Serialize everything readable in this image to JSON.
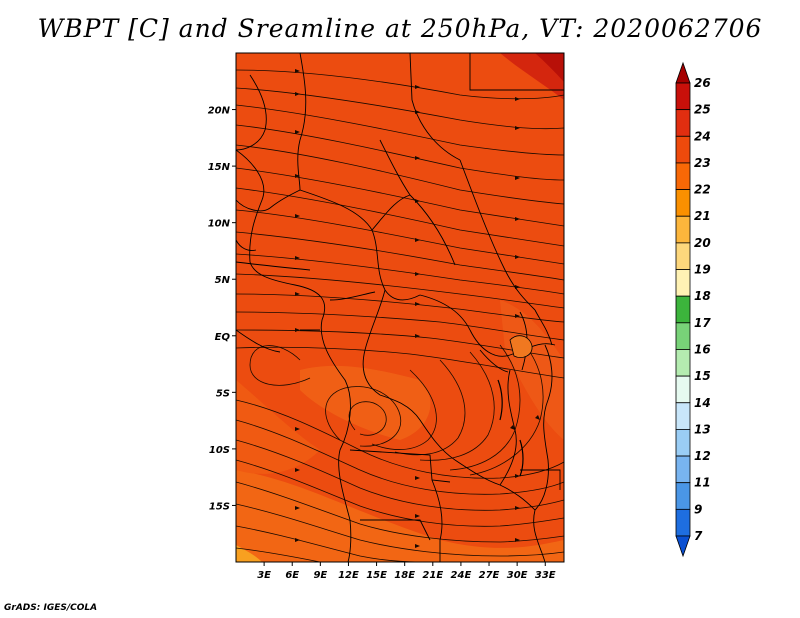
{
  "title": "WBPT [C] and Sreamline at 250hPa, VT: 2020062706",
  "footer": "GrADS: IGES/COLA",
  "map": {
    "lon_range": [
      0,
      35
    ],
    "lat_range": [
      -20,
      25
    ],
    "x_ticks": [
      "3E",
      "6E",
      "9E",
      "12E",
      "15E",
      "18E",
      "21E",
      "24E",
      "27E",
      "30E",
      "33E"
    ],
    "y_ticks": [
      "20N",
      "15N",
      "10N",
      "5N",
      "EQ",
      "5S",
      "10S",
      "15S"
    ],
    "field_dominant_range_c": [
      23,
      24
    ],
    "field_warm_core_max_c": 26,
    "field_min_c": 22
  },
  "colorbar": {
    "labels": [
      "26",
      "25",
      "24",
      "23",
      "22",
      "21",
      "20",
      "19",
      "18",
      "17",
      "16",
      "15",
      "14",
      "13",
      "12",
      "11",
      "9",
      "7"
    ],
    "colors": [
      "#a50000",
      "#c8100a",
      "#e12e10",
      "#ee4a0c",
      "#f86806",
      "#fa9000",
      "#fcb63c",
      "#fdd77c",
      "#fff2b4",
      "#3cb43c",
      "#78d278",
      "#b4ecb0",
      "#e6faf0",
      "#c8e6fa",
      "#9acdf5",
      "#78b4f0",
      "#4a96e6",
      "#1e6ee0",
      "#0a50d2"
    ]
  }
}
